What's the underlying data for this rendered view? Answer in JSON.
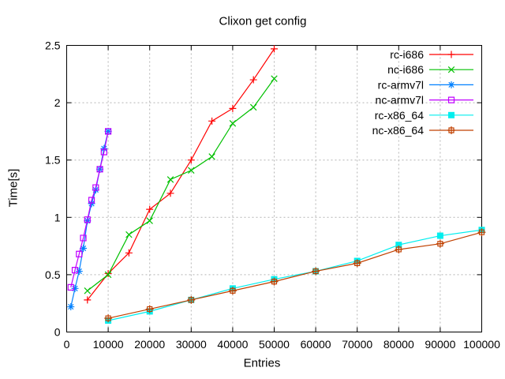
{
  "chart_data": {
    "type": "line",
    "title": "Clixon get config",
    "xlabel": "Entries",
    "ylabel": "Time[s]",
    "xlim": [
      0,
      100000
    ],
    "ylim": [
      0,
      2.5
    ],
    "grid": true,
    "grid_color": "#b4b4b4",
    "border_color": "#000000",
    "legend_position": "top-right-inside",
    "xticks": {
      "values": [
        0,
        10000,
        20000,
        30000,
        40000,
        50000,
        60000,
        70000,
        80000,
        90000,
        100000
      ],
      "labels": [
        "0",
        "10000",
        "20000",
        "30000",
        "40000",
        "50000",
        "60000",
        "70000",
        "80000",
        "90000",
        "100000"
      ]
    },
    "yticks": {
      "values": [
        0,
        0.5,
        1,
        1.5,
        2,
        2.5
      ],
      "labels": [
        "0",
        "0.5",
        "1",
        "1.5",
        "2",
        "2.5"
      ]
    },
    "series": [
      {
        "name": "rc-i686",
        "color": "#ff0000",
        "marker": "plus",
        "x": [
          5000,
          10000,
          15000,
          20000,
          25000,
          30000,
          35000,
          40000,
          45000,
          50000
        ],
        "y": [
          0.28,
          0.51,
          0.69,
          1.07,
          1.21,
          1.5,
          1.84,
          1.95,
          2.2,
          2.47
        ]
      },
      {
        "name": "nc-i686",
        "color": "#00c000",
        "marker": "cross",
        "x": [
          5000,
          10000,
          15000,
          20000,
          25000,
          30000,
          35000,
          40000,
          45000,
          50000
        ],
        "y": [
          0.36,
          0.5,
          0.85,
          0.97,
          1.33,
          1.41,
          1.53,
          1.82,
          1.96,
          2.21
        ]
      },
      {
        "name": "rc-armv7l",
        "color": "#0080ff",
        "marker": "asterisk",
        "x": [
          1000,
          2000,
          3000,
          4000,
          5000,
          6000,
          7000,
          8000,
          9000,
          10000
        ],
        "y": [
          0.22,
          0.38,
          0.53,
          0.73,
          0.97,
          1.12,
          1.24,
          1.42,
          1.6,
          1.75
        ]
      },
      {
        "name": "nc-armv7l",
        "color": "#c000ff",
        "marker": "square-open",
        "x": [
          1000,
          2000,
          3000,
          4000,
          5000,
          6000,
          7000,
          8000,
          9000,
          10000
        ],
        "y": [
          0.39,
          0.54,
          0.68,
          0.82,
          0.98,
          1.15,
          1.26,
          1.42,
          1.57,
          1.75
        ]
      },
      {
        "name": "rc-x86_64",
        "color": "#00eeee",
        "marker": "square-filled",
        "x": [
          10000,
          20000,
          30000,
          40000,
          50000,
          60000,
          70000,
          80000,
          90000,
          100000
        ],
        "y": [
          0.1,
          0.18,
          0.28,
          0.38,
          0.46,
          0.53,
          0.62,
          0.76,
          0.84,
          0.89
        ]
      },
      {
        "name": "nc-x86_64",
        "color": "#c04000",
        "marker": "square-plus",
        "x": [
          10000,
          20000,
          30000,
          40000,
          50000,
          60000,
          70000,
          80000,
          90000,
          100000
        ],
        "y": [
          0.12,
          0.2,
          0.28,
          0.36,
          0.44,
          0.53,
          0.6,
          0.72,
          0.77,
          0.87
        ]
      }
    ]
  }
}
